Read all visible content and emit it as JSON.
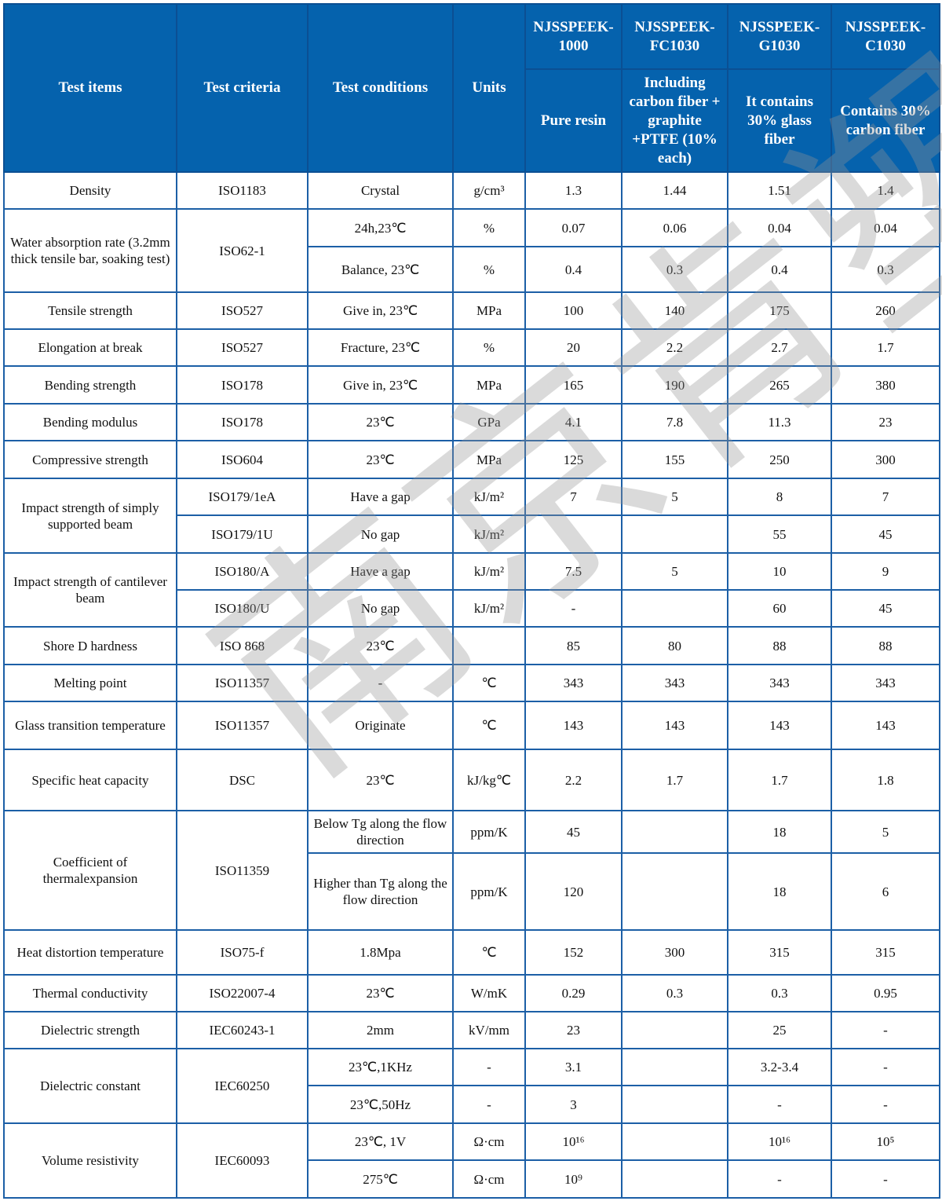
{
  "watermark": "南京肯塑",
  "colors": {
    "header_bg": "#0562ad",
    "border": "#1c5fa6",
    "header_text": "#ffffff"
  },
  "table": {
    "header": [
      [
        {
          "t": "Test items",
          "rs": 2
        },
        {
          "t": "Test criteria",
          "rs": 2
        },
        {
          "t": "Test conditions",
          "rs": 2
        },
        {
          "t": "Units",
          "rs": 2
        },
        {
          "t": "NJSSPEEK-1000"
        },
        {
          "t": "NJSSPEEK-FC1030"
        },
        {
          "t": "NJSSPEEK-G1030"
        },
        {
          "t": "NJSSPEEK-C1030"
        }
      ],
      [
        {
          "t": "Pure resin"
        },
        {
          "t": "Including carbon fiber + graphite +PTFE (10% each)"
        },
        {
          "t": "It contains 30% glass fiber"
        },
        {
          "t": "Contains 30% carbon fiber"
        }
      ]
    ],
    "rows": [
      [
        {
          "t": "Density"
        },
        {
          "t": "ISO1183"
        },
        {
          "t": "Crystal"
        },
        {
          "t": "g/cm³"
        },
        {
          "t": "1.3"
        },
        {
          "t": "1.44"
        },
        {
          "t": "1.51"
        },
        {
          "t": "1.4"
        }
      ],
      [
        {
          "t": "Water absorption rate (3.2mm thick tensile bar, soaking test)",
          "rs": 2
        },
        {
          "t": "ISO62-1",
          "rs": 2
        },
        {
          "t": "24h,23℃"
        },
        {
          "t": "%"
        },
        {
          "t": "0.07"
        },
        {
          "t": "0.06"
        },
        {
          "t": "0.04"
        },
        {
          "t": "0.04"
        }
      ],
      [
        {
          "t": "Balance, 23℃"
        },
        {
          "t": "%"
        },
        {
          "t": "0.4"
        },
        {
          "t": "0.3"
        },
        {
          "t": "0.4"
        },
        {
          "t": "0.3"
        }
      ],
      [
        {
          "t": "Tensile strength"
        },
        {
          "t": "ISO527"
        },
        {
          "t": "Give in, 23℃"
        },
        {
          "t": "MPa"
        },
        {
          "t": "100"
        },
        {
          "t": "140"
        },
        {
          "t": "175"
        },
        {
          "t": "260"
        }
      ],
      [
        {
          "t": "Elongation at break"
        },
        {
          "t": "ISO527"
        },
        {
          "t": "Fracture, 23℃"
        },
        {
          "t": "%"
        },
        {
          "t": "20"
        },
        {
          "t": "2.2"
        },
        {
          "t": "2.7"
        },
        {
          "t": "1.7"
        }
      ],
      [
        {
          "t": "Bending strength"
        },
        {
          "t": "ISO178"
        },
        {
          "t": "Give in, 23℃"
        },
        {
          "t": "MPa"
        },
        {
          "t": "165"
        },
        {
          "t": "190"
        },
        {
          "t": "265"
        },
        {
          "t": "380"
        }
      ],
      [
        {
          "t": "Bending modulus"
        },
        {
          "t": "ISO178"
        },
        {
          "t": "23℃"
        },
        {
          "t": "GPa"
        },
        {
          "t": "4.1"
        },
        {
          "t": "7.8"
        },
        {
          "t": "11.3"
        },
        {
          "t": "23"
        }
      ],
      [
        {
          "t": "Compressive strength"
        },
        {
          "t": "ISO604"
        },
        {
          "t": "23℃"
        },
        {
          "t": "MPa"
        },
        {
          "t": "125"
        },
        {
          "t": "155"
        },
        {
          "t": "250"
        },
        {
          "t": "300"
        }
      ],
      [
        {
          "t": "Impact strength of simply supported beam",
          "rs": 2
        },
        {
          "t": "ISO179/1eA"
        },
        {
          "t": "Have a gap"
        },
        {
          "t": "kJ/m²"
        },
        {
          "t": "7"
        },
        {
          "t": "5"
        },
        {
          "t": "8"
        },
        {
          "t": "7"
        }
      ],
      [
        {
          "t": "ISO179/1U"
        },
        {
          "t": "No gap"
        },
        {
          "t": "kJ/m²"
        },
        {
          "t": ""
        },
        {
          "t": ""
        },
        {
          "t": "55"
        },
        {
          "t": "45"
        }
      ],
      [
        {
          "t": "Impact strength of cantilever beam",
          "rs": 2
        },
        {
          "t": "ISO180/A"
        },
        {
          "t": "Have a gap"
        },
        {
          "t": "kJ/m²"
        },
        {
          "t": "7.5"
        },
        {
          "t": "5"
        },
        {
          "t": "10"
        },
        {
          "t": "9"
        }
      ],
      [
        {
          "t": "ISO180/U"
        },
        {
          "t": "No gap"
        },
        {
          "t": "kJ/m²"
        },
        {
          "t": "-"
        },
        {
          "t": ""
        },
        {
          "t": "60"
        },
        {
          "t": "45"
        }
      ],
      [
        {
          "t": "Shore D hardness"
        },
        {
          "t": "ISO 868"
        },
        {
          "t": "23℃"
        },
        {
          "t": ""
        },
        {
          "t": "85"
        },
        {
          "t": "80"
        },
        {
          "t": "88"
        },
        {
          "t": "88"
        }
      ],
      [
        {
          "t": "Melting point"
        },
        {
          "t": "ISO11357"
        },
        {
          "t": "-"
        },
        {
          "t": "℃"
        },
        {
          "t": "343"
        },
        {
          "t": "343"
        },
        {
          "t": "343"
        },
        {
          "t": "343"
        }
      ],
      [
        {
          "t": "Glass transition temperature"
        },
        {
          "t": "ISO11357"
        },
        {
          "t": "Originate"
        },
        {
          "t": "℃"
        },
        {
          "t": "143"
        },
        {
          "t": "143"
        },
        {
          "t": "143"
        },
        {
          "t": "143"
        }
      ],
      [
        {
          "t": "Specific heat capacity"
        },
        {
          "t": "DSC"
        },
        {
          "t": "23℃"
        },
        {
          "t": "kJ/kg℃"
        },
        {
          "t": "2.2"
        },
        {
          "t": "1.7"
        },
        {
          "t": "1.7"
        },
        {
          "t": "1.8"
        }
      ],
      [
        {
          "t": "Coefficient of thermalexpansion",
          "rs": 2
        },
        {
          "t": "ISO11359",
          "rs": 2
        },
        {
          "t": "Below Tg along the flow direction"
        },
        {
          "t": "ppm/K"
        },
        {
          "t": "45"
        },
        {
          "t": ""
        },
        {
          "t": "18"
        },
        {
          "t": "5"
        }
      ],
      [
        {
          "t": "Higher than Tg along the flow direction"
        },
        {
          "t": "ppm/K"
        },
        {
          "t": "120"
        },
        {
          "t": ""
        },
        {
          "t": "18"
        },
        {
          "t": "6"
        }
      ],
      [
        {
          "t": "Heat distortion temperature"
        },
        {
          "t": "ISO75-f"
        },
        {
          "t": "1.8Mpa"
        },
        {
          "t": "℃"
        },
        {
          "t": "152"
        },
        {
          "t": "300"
        },
        {
          "t": "315"
        },
        {
          "t": "315"
        }
      ],
      [
        {
          "t": "Thermal conductivity"
        },
        {
          "t": "ISO22007-4"
        },
        {
          "t": "23℃"
        },
        {
          "t": "W/mK"
        },
        {
          "t": "0.29"
        },
        {
          "t": "0.3"
        },
        {
          "t": "0.3"
        },
        {
          "t": "0.95"
        }
      ],
      [
        {
          "t": "Dielectric strength"
        },
        {
          "t": "IEC60243-1"
        },
        {
          "t": "2mm"
        },
        {
          "t": "kV/mm"
        },
        {
          "t": "23"
        },
        {
          "t": ""
        },
        {
          "t": "25"
        },
        {
          "t": "-"
        }
      ],
      [
        {
          "t": "Dielectric constant",
          "rs": 2
        },
        {
          "t": "IEC60250",
          "rs": 2
        },
        {
          "t": "23℃,1KHz"
        },
        {
          "t": "-"
        },
        {
          "t": "3.1"
        },
        {
          "t": ""
        },
        {
          "t": "3.2-3.4"
        },
        {
          "t": "-"
        }
      ],
      [
        {
          "t": "23℃,50Hz"
        },
        {
          "t": "-"
        },
        {
          "t": "3"
        },
        {
          "t": ""
        },
        {
          "t": "-"
        },
        {
          "t": "-"
        }
      ],
      [
        {
          "t": "Volume resistivity",
          "rs": 2
        },
        {
          "t": "IEC60093",
          "rs": 2
        },
        {
          "t": "23℃, 1V"
        },
        {
          "t": "Ω·cm"
        },
        {
          "t": "10¹⁶"
        },
        {
          "t": ""
        },
        {
          "t": "10¹⁶"
        },
        {
          "t": "10⁵"
        }
      ],
      [
        {
          "t": "275℃"
        },
        {
          "t": "Ω·cm"
        },
        {
          "t": "10⁹"
        },
        {
          "t": ""
        },
        {
          "t": "-"
        },
        {
          "t": "-"
        }
      ]
    ]
  }
}
